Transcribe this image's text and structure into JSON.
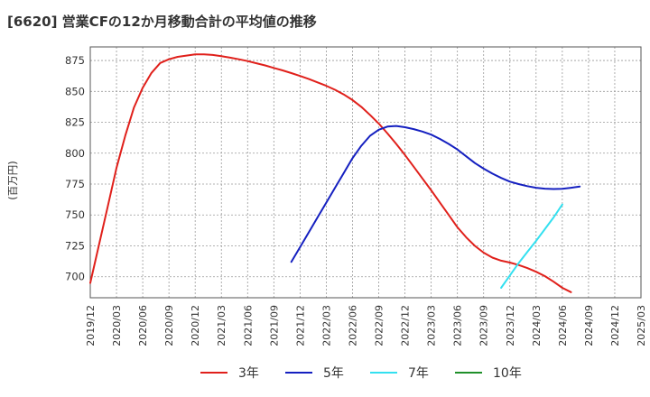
{
  "chart_data": {
    "type": "line",
    "title": "[6620]  営業CFの12か月移動合計の平均値の推移",
    "ylabel": "(百万円)",
    "xlabel": "",
    "ylim": [
      683,
      886
    ],
    "yticks": [
      700,
      725,
      750,
      775,
      800,
      825,
      850,
      875
    ],
    "x_categories": [
      "2019/12",
      "2020/03",
      "2020/06",
      "2020/09",
      "2020/12",
      "2021/03",
      "2021/06",
      "2021/09",
      "2021/12",
      "2022/03",
      "2022/06",
      "2022/09",
      "2022/12",
      "2023/03",
      "2023/06",
      "2023/09",
      "2023/12",
      "2024/03",
      "2024/06",
      "2024/09",
      "2024/12",
      "2025/03"
    ],
    "grid": true,
    "legend_position": "bottom",
    "series": [
      {
        "name": "3年",
        "color": "#e0201b",
        "points": [
          [
            "2019/12",
            695
          ],
          [
            "2020/01",
            726
          ],
          [
            "2020/02",
            757
          ],
          [
            "2020/03",
            788
          ],
          [
            "2020/04",
            814
          ],
          [
            "2020/05",
            837
          ],
          [
            "2020/06",
            853
          ],
          [
            "2020/07",
            865
          ],
          [
            "2020/08",
            873
          ],
          [
            "2020/09",
            876
          ],
          [
            "2020/10",
            878
          ],
          [
            "2020/11",
            879
          ],
          [
            "2020/12",
            880
          ],
          [
            "2021/01",
            880
          ],
          [
            "2021/02",
            879.5
          ],
          [
            "2021/03",
            878.5
          ],
          [
            "2021/04",
            877.3
          ],
          [
            "2021/05",
            876
          ],
          [
            "2021/06",
            874.5
          ],
          [
            "2021/07",
            872.8
          ],
          [
            "2021/08",
            871
          ],
          [
            "2021/09",
            869
          ],
          [
            "2021/10",
            867
          ],
          [
            "2021/11",
            864.8
          ],
          [
            "2021/12",
            862.5
          ],
          [
            "2022/01",
            860
          ],
          [
            "2022/02",
            857.3
          ],
          [
            "2022/03",
            854.5
          ],
          [
            "2022/04",
            851.3
          ],
          [
            "2022/05",
            847.5
          ],
          [
            "2022/06",
            843
          ],
          [
            "2022/07",
            837.5
          ],
          [
            "2022/08",
            831
          ],
          [
            "2022/09",
            824
          ],
          [
            "2022/10",
            816
          ],
          [
            "2022/11",
            807.5
          ],
          [
            "2022/12",
            798.5
          ],
          [
            "2023/01",
            789
          ],
          [
            "2023/02",
            779.5
          ],
          [
            "2023/03",
            770
          ],
          [
            "2023/04",
            760
          ],
          [
            "2023/05",
            750
          ],
          [
            "2023/06",
            740
          ],
          [
            "2023/07",
            732
          ],
          [
            "2023/08",
            725
          ],
          [
            "2023/09",
            719.5
          ],
          [
            "2023/10",
            715.5
          ],
          [
            "2023/11",
            713
          ],
          [
            "2023/12",
            711.5
          ],
          [
            "2024/01",
            709.5
          ],
          [
            "2024/02",
            707
          ],
          [
            "2024/03",
            704
          ],
          [
            "2024/04",
            700.5
          ],
          [
            "2024/05",
            696
          ],
          [
            "2024/06",
            691
          ],
          [
            "2024/07",
            687.5
          ]
        ]
      },
      {
        "name": "5年",
        "color": "#1520c0",
        "points": [
          [
            "2021/11",
            712
          ],
          [
            "2021/12",
            724
          ],
          [
            "2022/01",
            736
          ],
          [
            "2022/02",
            748
          ],
          [
            "2022/03",
            760
          ],
          [
            "2022/04",
            772
          ],
          [
            "2022/05",
            784
          ],
          [
            "2022/06",
            796
          ],
          [
            "2022/07",
            806
          ],
          [
            "2022/08",
            814
          ],
          [
            "2022/09",
            819
          ],
          [
            "2022/10",
            821.5
          ],
          [
            "2022/11",
            822
          ],
          [
            "2022/12",
            821
          ],
          [
            "2023/01",
            819.5
          ],
          [
            "2023/02",
            817.5
          ],
          [
            "2023/03",
            815
          ],
          [
            "2023/04",
            811.5
          ],
          [
            "2023/05",
            807.5
          ],
          [
            "2023/06",
            803
          ],
          [
            "2023/07",
            797.5
          ],
          [
            "2023/08",
            792
          ],
          [
            "2023/09",
            787.5
          ],
          [
            "2023/10",
            783.5
          ],
          [
            "2023/11",
            780
          ],
          [
            "2023/12",
            777
          ],
          [
            "2024/01",
            775
          ],
          [
            "2024/02",
            773.3
          ],
          [
            "2024/03",
            772
          ],
          [
            "2024/04",
            771.3
          ],
          [
            "2024/05",
            771
          ],
          [
            "2024/06",
            771.2
          ],
          [
            "2024/07",
            772
          ],
          [
            "2024/08",
            773
          ]
        ]
      },
      {
        "name": "7年",
        "color": "#33e0f0",
        "points": [
          [
            "2023/11",
            691
          ],
          [
            "2023/12",
            701
          ],
          [
            "2024/01",
            711
          ],
          [
            "2024/02",
            720
          ],
          [
            "2024/03",
            729
          ],
          [
            "2024/04",
            738.5
          ],
          [
            "2024/05",
            748
          ],
          [
            "2024/06",
            758.5
          ]
        ]
      },
      {
        "name": "10年",
        "color": "#20902a",
        "points": []
      }
    ]
  }
}
